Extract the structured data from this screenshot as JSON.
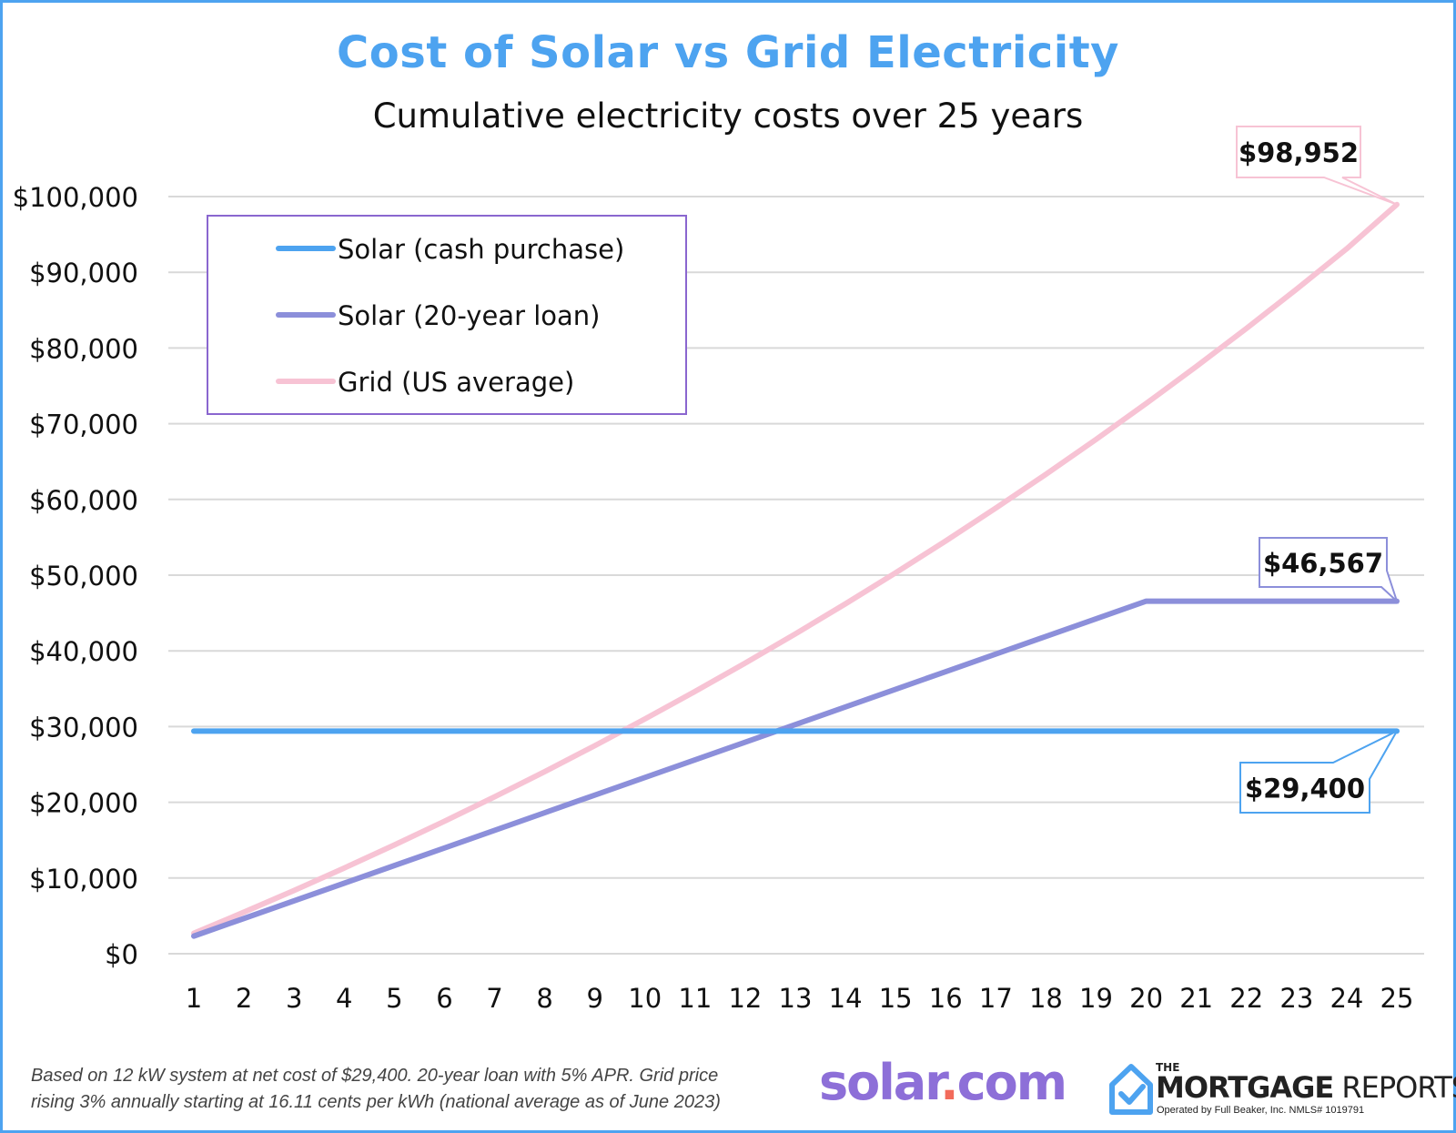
{
  "chart_data": {
    "type": "line",
    "title": "Cost of Solar vs Grid Electricity",
    "subtitle": "Cumulative electricity costs over 25 years",
    "x": [
      1,
      2,
      3,
      4,
      5,
      6,
      7,
      8,
      9,
      10,
      11,
      12,
      13,
      14,
      15,
      16,
      17,
      18,
      19,
      20,
      21,
      22,
      23,
      24,
      25
    ],
    "ylim": [
      0,
      100000
    ],
    "yticks": [
      "$0",
      "$10,000",
      "$20,000",
      "$30,000",
      "$40,000",
      "$50,000",
      "$60,000",
      "$70,000",
      "$80,000",
      "$90,000",
      "$100,000"
    ],
    "grid": true,
    "legend_position": "top-left",
    "series": [
      {
        "name": "Solar (cash purchase)",
        "color": "#4da3f0",
        "values": [
          29400,
          29400,
          29400,
          29400,
          29400,
          29400,
          29400,
          29400,
          29400,
          29400,
          29400,
          29400,
          29400,
          29400,
          29400,
          29400,
          29400,
          29400,
          29400,
          29400,
          29400,
          29400,
          29400,
          29400,
          29400
        ]
      },
      {
        "name": "Solar (20-year loan)",
        "color": "#8c8fda",
        "values": [
          2328,
          4657,
          6985,
          9313,
          11642,
          13970,
          16298,
          18627,
          20955,
          23283,
          25612,
          27940,
          30268,
          32597,
          34925,
          37253,
          39582,
          41910,
          44238,
          46567,
          46567,
          46567,
          46567,
          46567,
          46567
        ]
      },
      {
        "name": "Grid (US average)",
        "color": "#f7c3d4",
        "values": [
          2705,
          5491,
          8360,
          11316,
          14360,
          17496,
          20725,
          24052,
          27478,
          31007,
          34642,
          38386,
          42242,
          46214,
          50304,
          54518,
          58858,
          63328,
          67932,
          72674,
          77559,
          82590,
          87772,
          93109,
          98952
        ]
      }
    ],
    "annotations": [
      {
        "label": "$98,952",
        "series": 2,
        "border": "#f7c3d4"
      },
      {
        "label": "$46,567",
        "series": 1,
        "border": "#8c8fda"
      },
      {
        "label": "$29,400",
        "series": 0,
        "border": "#4da3f0"
      }
    ]
  },
  "footnote": {
    "line1": "Based on 12 kW system at net cost of $29,400. 20-year loan with 5% APR. Grid price",
    "line2": "rising 3% annually starting at 16.11 cents per kWh (national average as of June 2023)"
  },
  "logos": {
    "solar_main": "solar",
    "solar_dot": ".",
    "solar_tld": "com",
    "tmr_the": "THE",
    "tmr_mortgage": "MORTGAGE",
    "tmr_reports": " REPORTS",
    "tmr_sub": "Operated by Full Beaker, Inc. NMLS# 1019791"
  }
}
